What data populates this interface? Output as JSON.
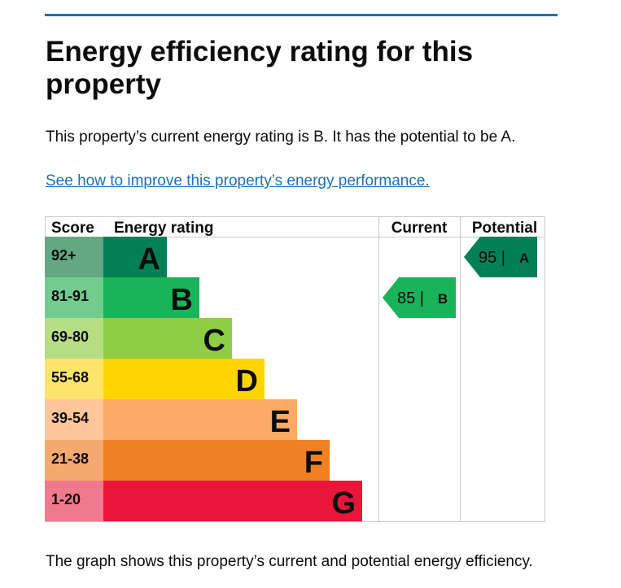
{
  "page": {
    "title": "Energy efficiency rating for this property",
    "intro": "This property’s current energy rating is B. It has the potential to be A.",
    "link": "See how to improve this property’s energy performance.",
    "caption": "The graph shows this property’s current and potential energy efficiency."
  },
  "chart_data": {
    "type": "bar",
    "headers": {
      "score": "Score",
      "rating": "Energy rating",
      "current": "Current",
      "potential": "Potential"
    },
    "bands": [
      {
        "letter": "A",
        "score": "92+",
        "color": "#008054",
        "score_bg": "#63a883"
      },
      {
        "letter": "B",
        "score": "81-91",
        "color": "#19b459",
        "score_bg": "#71cc90"
      },
      {
        "letter": "C",
        "score": "69-80",
        "color": "#8dce46",
        "score_bg": "#b6dd84"
      },
      {
        "letter": "D",
        "score": "55-68",
        "color": "#ffd500",
        "score_bg": "#fde46a"
      },
      {
        "letter": "E",
        "score": "39-54",
        "color": "#fcaa65",
        "score_bg": "#fdc69b"
      },
      {
        "letter": "F",
        "score": "21-38",
        "color": "#ef8023",
        "score_bg": "#f4aa6f"
      },
      {
        "letter": "G",
        "score": "1-20",
        "color": "#e9153b",
        "score_bg": "#f07a8d"
      }
    ],
    "current": {
      "value": 85,
      "letter": "B",
      "label": "85 |",
      "color": "#19b459"
    },
    "potential": {
      "value": 95,
      "letter": "A",
      "label": "95 |",
      "color": "#008054"
    }
  }
}
